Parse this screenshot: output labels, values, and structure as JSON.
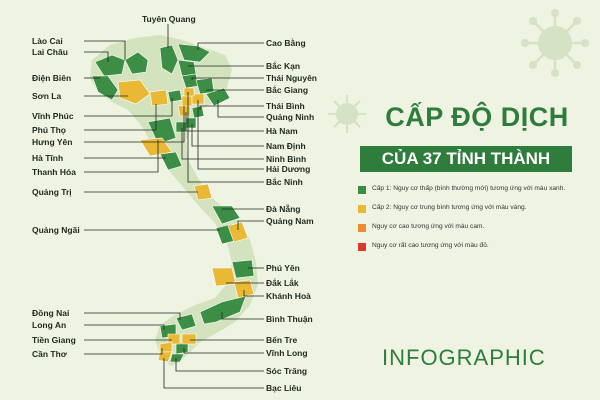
{
  "title": {
    "line1": "CẤP ĐỘ DỊCH",
    "line2": "CỦA 37 TỈNH THÀNH"
  },
  "footer": "INFOGRAPHIC",
  "colors": {
    "background": "#eef3e2",
    "map_base": "#d3e3bd",
    "level1_green": "#3b8e43",
    "level2_yellow": "#e9b935",
    "level3_orange": "#ef8a2f",
    "level4_red": "#d63b2f",
    "title_green": "#2e7d3c",
    "virus_decor": "#d5e2c4"
  },
  "legend": [
    {
      "color": "#3b8e43",
      "text": "Cấp 1: Nguy cơ thấp (bình thường mới) tương ứng với màu xanh."
    },
    {
      "color": "#e9b935",
      "text": "Cấp 2: Nguy cơ trung bình tương ứng với màu vàng."
    },
    {
      "color": "#ef8a2f",
      "text": "Nguy cơ cao tương ứng với màu cam."
    },
    {
      "color": "#d63b2f",
      "text": "Nguy cơ rất cao tương ứng với màu đỏ."
    }
  ],
  "provinces_left": [
    "Lào Cai",
    "Lai Châu",
    "Điện Biên",
    "Sơn La",
    "Vĩnh Phúc",
    "Phú Thọ",
    "Hưng Yên",
    "Hà Tĩnh",
    "Thanh Hóa",
    "Quảng Trị",
    "Quảng Ngãi",
    "Đồng Nai",
    "Long An",
    "Tiền Giang",
    "Cần Thơ"
  ],
  "provinces_top": [
    "Tuyên Quang"
  ],
  "provinces_right": [
    "Cao Bằng",
    "Bắc Kạn",
    "Thái Nguyên",
    "Bắc Giang",
    "Thái Bình",
    "Quảng Ninh",
    "Hà Nam",
    "Nam Định",
    "Ninh Bình",
    "Hải Dương",
    "Bắc Ninh",
    "Đà Nẵng",
    "Quảng Nam",
    "Phú Yên",
    "Đắk Lắk",
    "Khánh Hoà",
    "Bình Thuận",
    "Bến Tre",
    "Vĩnh Long",
    "Sóc Trăng",
    "Bạc Liêu"
  ]
}
